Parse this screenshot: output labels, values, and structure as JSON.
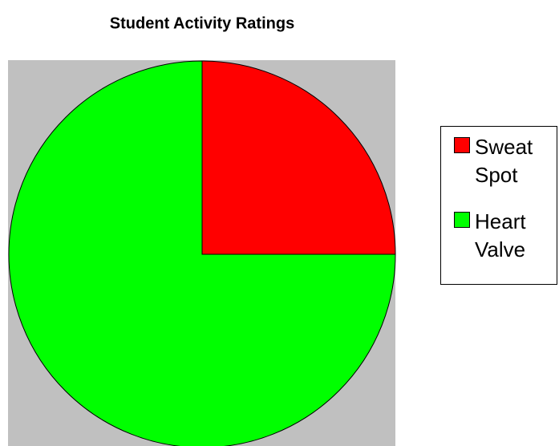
{
  "chart_data": {
    "type": "pie",
    "title": "Student Activity Ratings",
    "categories": [
      "Sweat Spot",
      "Heart Valve"
    ],
    "values": [
      25,
      75
    ],
    "colors": [
      "#ff0000",
      "#00ff00"
    ],
    "background": "#c0c0c0",
    "legend": "right"
  }
}
